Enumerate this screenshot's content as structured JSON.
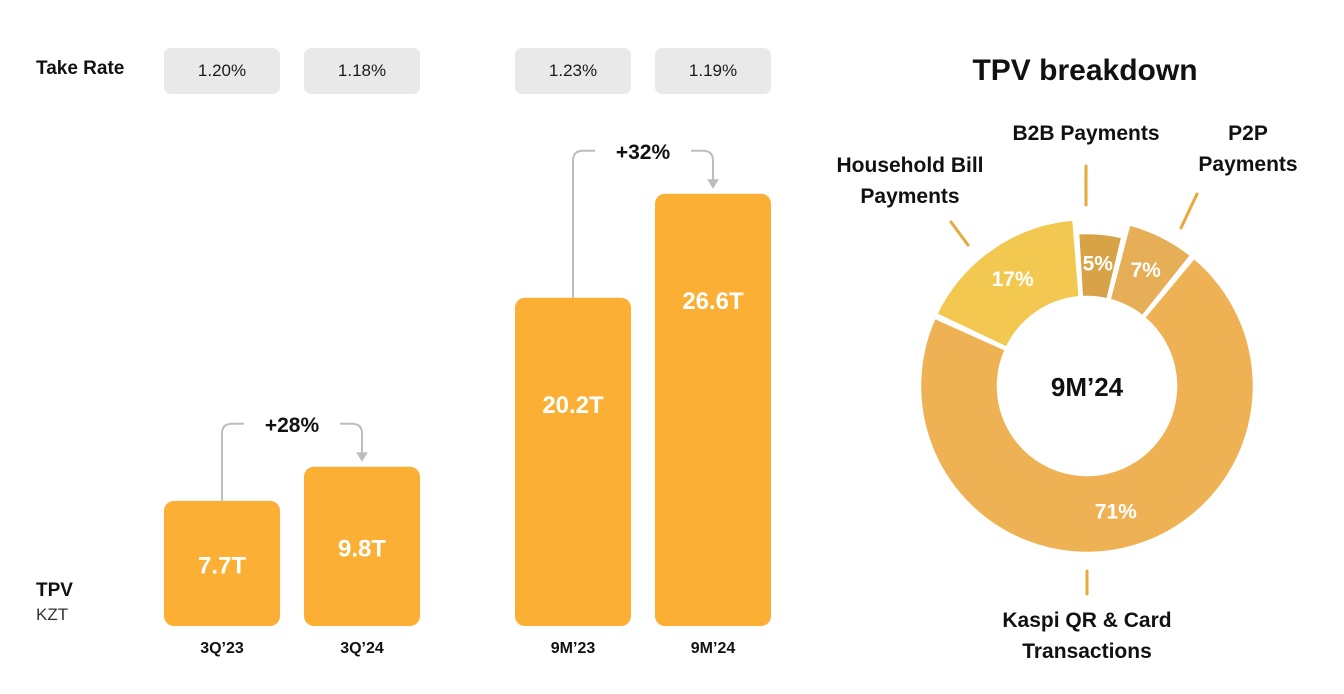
{
  "take_rate": {
    "label": "Take Rate",
    "values": [
      "1.20%",
      "1.18%",
      "1.23%",
      "1.19%"
    ]
  },
  "tpv_axis": {
    "title": "TPV",
    "unit": "KZT"
  },
  "colors": {
    "bar": "#FCAF35",
    "pill": "#E9E9E9",
    "arrow": "#BDBDBD",
    "kaspi": "#EEB255",
    "household": "#F3C850",
    "b2b": "#D8A347",
    "p2p": "#E6AE57",
    "leader": "#E6A93A"
  },
  "chart_data": [
    {
      "type": "bar",
      "title": "TPV",
      "ylabel": "KZT",
      "categories": [
        "3Q'23",
        "3Q'24",
        "9M'23",
        "9M'24"
      ],
      "category_labels": [
        "3Q’23",
        "3Q’24",
        "9M’23",
        "9M’24"
      ],
      "values": [
        7.7,
        9.8,
        20.2,
        26.6
      ],
      "value_labels": [
        "7.7T",
        "9.8T",
        "20.2T",
        "26.6T"
      ],
      "ylim": [
        0,
        28
      ],
      "growth": [
        {
          "from": "3Q'23",
          "to": "3Q'24",
          "label": "+28%"
        },
        {
          "from": "9M'23",
          "to": "9M'24",
          "label": "+32%"
        }
      ]
    },
    {
      "type": "pie",
      "title": "TPV breakdown",
      "center_label": "9M’24",
      "slices": [
        {
          "name": "Kaspi QR & Card Transactions",
          "label_lines": [
            "Kaspi QR & Card",
            "Transactions"
          ],
          "value": 71,
          "value_label": "71%"
        },
        {
          "name": "Household Bill Payments",
          "label_lines": [
            "Household Bill",
            "Payments"
          ],
          "value": 17,
          "value_label": "17%"
        },
        {
          "name": "B2B Payments",
          "label_lines": [
            "B2B Payments"
          ],
          "value": 5,
          "value_label": "5%"
        },
        {
          "name": "P2P Payments",
          "label_lines": [
            "P2P",
            "Payments"
          ],
          "value": 7,
          "value_label": "7%"
        }
      ]
    }
  ]
}
